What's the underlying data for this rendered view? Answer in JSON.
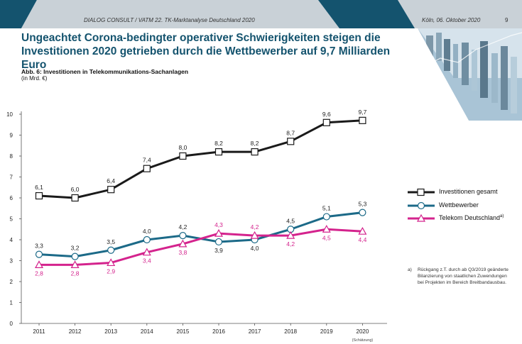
{
  "header": {
    "left": "DIALOG CONSULT / VATM 22. TK-Marktanalyse Deutschland 2020",
    "date": "Köln, 06. Oktober 2020",
    "page": "9"
  },
  "title": "Ungeachtet Corona-bedingter operativer Schwierigkeiten steigen die Investitionen 2020 getrieben durch die Wettbewerber auf 9,7 Milliarden Euro",
  "colors": {
    "header_blue": "#14536e",
    "header_grey": "#c7cfd5",
    "black": "#1a1a1a",
    "teal": "#1c6a88",
    "magenta": "#d4238d"
  },
  "chart_data": {
    "type": "line",
    "title": "Abb. 6: Investitionen in Telekommunikations-Sachanlagen",
    "ylabel": "(in Mrd. €)",
    "xlabel": "",
    "x_note": "(Schätzung)",
    "categories": [
      "2011",
      "2012",
      "2013",
      "2014",
      "2015",
      "2016",
      "2017",
      "2018",
      "2019",
      "2020"
    ],
    "ylim": [
      0,
      10
    ],
    "yticks": [
      "0",
      "1",
      "2",
      "3",
      "4",
      "5",
      "6",
      "7",
      "8",
      "9",
      "10"
    ],
    "series": [
      {
        "name": "Investitionen gesamt",
        "marker": "square",
        "color": "#1a1a1a",
        "values": [
          6.1,
          6.0,
          6.4,
          7.4,
          8.0,
          8.2,
          8.2,
          8.7,
          9.6,
          9.7
        ],
        "labels": [
          "6,1",
          "6,0",
          "6,4",
          "7,4",
          "8,0",
          "8,2",
          "8,2",
          "8,7",
          "9,6",
          "9,7"
        ]
      },
      {
        "name": "Wettbewerber",
        "marker": "circle",
        "color": "#1c6a88",
        "values": [
          3.3,
          3.2,
          3.5,
          4.0,
          4.2,
          3.9,
          4.0,
          4.5,
          5.1,
          5.3
        ],
        "labels": [
          "3,3",
          "3,2",
          "3,5",
          "4,0",
          "4,2",
          "3,9",
          "4,0",
          "4,5",
          "5,1",
          "5,3"
        ]
      },
      {
        "name": "Telekom Deutschland",
        "marker": "triangle",
        "color": "#d4238d",
        "superscript": "a)",
        "values": [
          2.8,
          2.8,
          2.9,
          3.4,
          3.8,
          4.3,
          4.2,
          4.2,
          4.5,
          4.4
        ],
        "labels": [
          "2,8",
          "2,8",
          "2,9",
          "3,4",
          "3,8",
          "4,3",
          "4,2",
          "4,2",
          "4,5",
          "4,4"
        ]
      }
    ]
  },
  "footnote": {
    "mark": "a)",
    "text": "Rückgang z.T. durch ab Q3/2019 geänderte Bilanzierung von staatlichen Zuwendungen bei Projekten im Bereich Breitbandausbau."
  }
}
